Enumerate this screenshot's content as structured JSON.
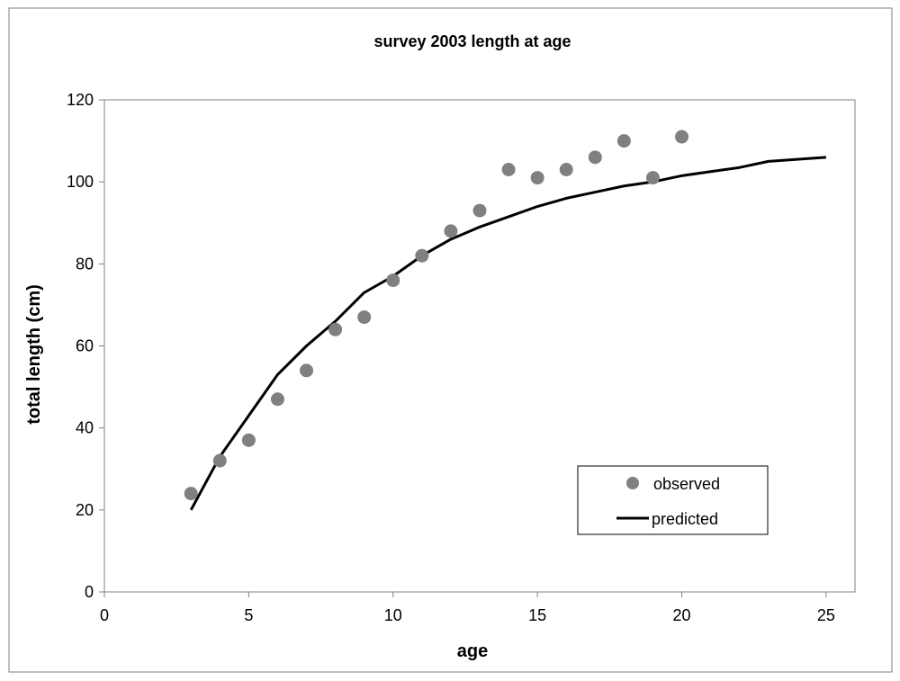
{
  "chart_data": {
    "type": "scatter",
    "title": "survey 2003 length at age",
    "xlabel": "age",
    "ylabel": "total length (cm)",
    "xlim": [
      0,
      26
    ],
    "ylim": [
      0,
      120
    ],
    "x_ticks": [
      0,
      5,
      10,
      15,
      20,
      25
    ],
    "y_ticks": [
      0,
      20,
      40,
      60,
      80,
      100,
      120
    ],
    "grid": false,
    "legend_position": "bottom-right",
    "series": [
      {
        "name": "observed",
        "kind": "scatter",
        "color": "#808080",
        "x": [
          3,
          4,
          5,
          6,
          7,
          8,
          9,
          10,
          11,
          12,
          13,
          14,
          15,
          16,
          17,
          18,
          19,
          20
        ],
        "y": [
          24,
          32,
          37,
          47,
          54,
          64,
          67,
          76,
          82,
          88,
          93,
          103,
          101,
          103,
          106,
          110,
          101,
          111
        ]
      },
      {
        "name": "predicted",
        "kind": "line",
        "color": "#000000",
        "x": [
          3,
          4,
          5,
          6,
          7,
          8,
          9,
          10,
          11,
          12,
          13,
          14,
          15,
          16,
          17,
          18,
          19,
          20,
          21,
          22,
          23,
          24,
          25
        ],
        "y": [
          20,
          33,
          43,
          53,
          60,
          66,
          73,
          77,
          82,
          86,
          89,
          91.5,
          94,
          96,
          97.5,
          99,
          100,
          101.5,
          102.5,
          103.5,
          105,
          105.5,
          106
        ]
      }
    ]
  }
}
